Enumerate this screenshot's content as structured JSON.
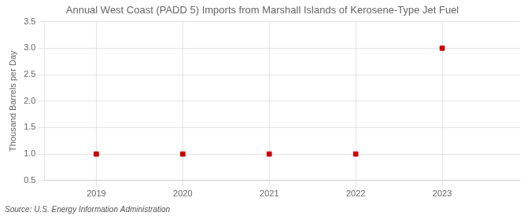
{
  "chart_data": {
    "type": "scatter",
    "title": "Annual West Coast (PADD 5) Imports from Marshall Islands of Kerosene-Type Jet Fuel",
    "ylabel": "Thousand Barrels per Day",
    "source": "Source: U.S. Energy Information Administration",
    "x": [
      2019,
      2020,
      2021,
      2022,
      2023
    ],
    "values": [
      1.0,
      1.0,
      1.0,
      1.0,
      3.0
    ],
    "color": "#cc0000",
    "marker": "square",
    "xlim": [
      2018.4,
      2023.9
    ],
    "xticks": [
      2019,
      2020,
      2021,
      2022,
      2023
    ],
    "ylim": [
      0.5,
      3.5
    ],
    "yticks": [
      0.5,
      {
        "value": 1.0,
        "label": "1.0"
      },
      1.5,
      {
        "value": 2.0,
        "label": "2.0"
      },
      2.5,
      {
        "value": 3.0,
        "label": "3.0"
      },
      3.5
    ],
    "grid": true
  }
}
